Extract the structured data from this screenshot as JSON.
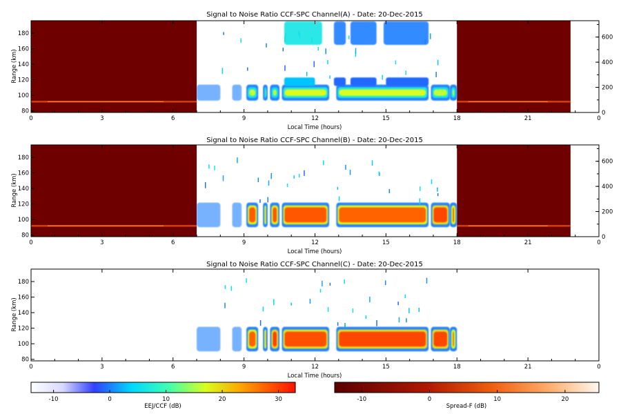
{
  "chart_data": [
    {
      "type": "heatmap",
      "title": "Signal to Noise Ratio CCF-SPC Channel(A) - Date: 20-Dec-2015",
      "xlabel": "Local Time (hours)",
      "ylabel": "Range (km)",
      "xlim": [
        0,
        24
      ],
      "ylim": [
        78,
        196
      ],
      "x_ticks": [
        "0",
        "3",
        "6",
        "9",
        "12",
        "15",
        "18",
        "21",
        "0"
      ],
      "y_ticks": [
        "80",
        "100",
        "120",
        "140",
        "160",
        "180"
      ],
      "y2lim": [
        0,
        730
      ],
      "y2_ticks": [
        "0",
        "200",
        "400",
        "600"
      ],
      "spread_f_windows_hours": [
        [
          0,
          7.0
        ],
        [
          18,
          22.8
        ]
      ],
      "eej_window_hours": [
        7.0,
        18.0
      ],
      "echo_bands": [
        {
          "scale": "EEJ/CCF",
          "range_km": [
            95,
            112
          ],
          "peak_db": 18
        },
        {
          "scale": "EEJ/CCF",
          "range_km": [
            112,
            123
          ],
          "peak_db": -5
        },
        {
          "scale": "EEJ/CCF",
          "range_km": [
            165,
            195
          ],
          "peak_db": 2
        },
        {
          "scale": "Spread-F",
          "range_km": [
            89,
            93
          ],
          "peak_db": 14
        }
      ]
    },
    {
      "type": "heatmap",
      "title": "Signal to Noise Ratio CCF-SPC Channel(B) - Date: 20-Dec-2015",
      "xlabel": "Local Time (hours)",
      "ylabel": "Range (km)",
      "xlim": [
        0,
        24
      ],
      "ylim": [
        78,
        196
      ],
      "x_ticks": [
        "0",
        "3",
        "6",
        "9",
        "12",
        "15",
        "18",
        "21",
        "0"
      ],
      "y_ticks": [
        "80",
        "100",
        "120",
        "140",
        "160",
        "180"
      ],
      "y2lim": [
        0,
        730
      ],
      "y2_ticks": [
        "0",
        "200",
        "400",
        "600"
      ],
      "spread_f_windows_hours": [
        [
          0,
          7.0
        ],
        [
          18,
          22.8
        ]
      ],
      "eej_window_hours": [
        7.0,
        18.0
      ],
      "echo_bands": [
        {
          "scale": "EEJ/CCF",
          "range_km": [
            92,
            120
          ],
          "peak_db": 30
        },
        {
          "scale": "Spread-F",
          "range_km": [
            89,
            93
          ],
          "peak_db": 14
        }
      ]
    },
    {
      "type": "heatmap",
      "title": "Signal to Noise Ratio CCF-SPC Channel(C) - Date: 20-Dec-2015",
      "xlabel": "Local Time (hours)",
      "ylabel": "Range (km)",
      "xlim": [
        0,
        24
      ],
      "ylim": [
        78,
        196
      ],
      "x_ticks": [
        "0",
        "3",
        "6",
        "9",
        "12",
        "15",
        "18",
        "21",
        "0"
      ],
      "y_ticks": [
        "80",
        "100",
        "120",
        "140",
        "160",
        "180"
      ],
      "eej_window_hours": [
        7.0,
        18.0
      ],
      "echo_bands": [
        {
          "scale": "EEJ/CCF",
          "range_km": [
            92,
            120
          ],
          "peak_db": 30
        }
      ]
    }
  ],
  "colorbars": [
    {
      "label": "EEJ/CCF (dB)",
      "range_db": [
        -14,
        33
      ],
      "ticks": [
        "-10",
        "0",
        "10",
        "20",
        "30"
      ]
    },
    {
      "label": "Spread-F (dB)",
      "range_db": [
        -14,
        25
      ],
      "ticks": [
        "-10",
        "0",
        "10",
        "20"
      ]
    }
  ]
}
